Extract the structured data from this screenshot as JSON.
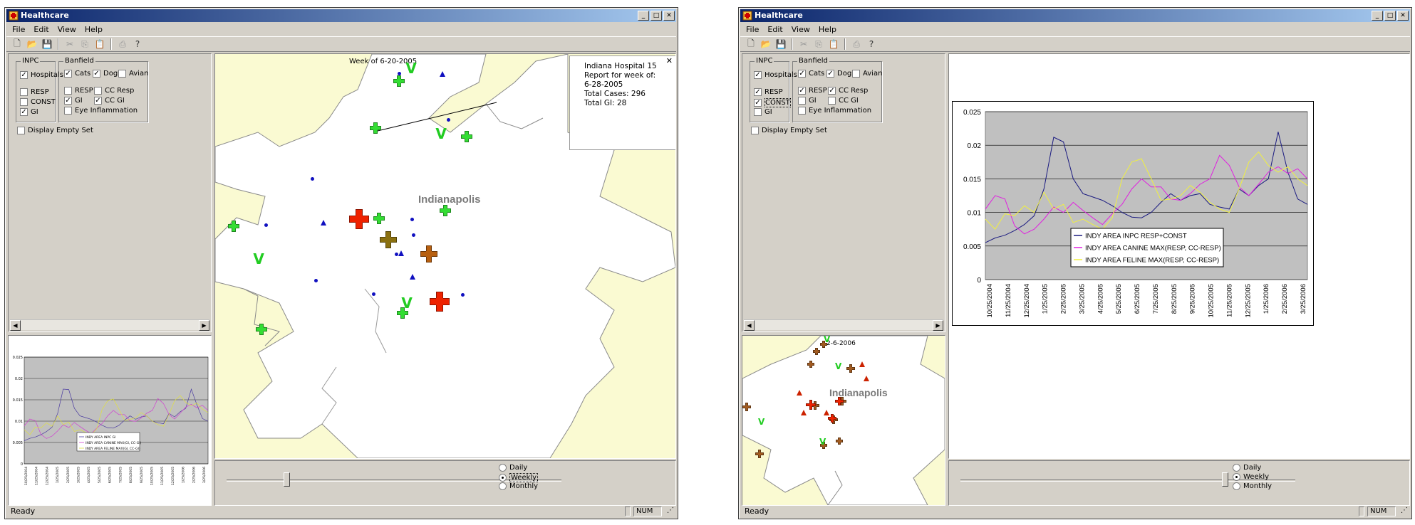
{
  "app": {
    "title": "Healthcare"
  },
  "menu": [
    "File",
    "Edit",
    "View",
    "Help"
  ],
  "toolbar_icons": [
    "new-icon",
    "open-icon",
    "save-icon",
    "cut-icon",
    "copy-icon",
    "paste-icon",
    "print-icon",
    "help-icon"
  ],
  "controls": {
    "inpc_label": "INPC",
    "banfield_label": "Banfield",
    "hospitals": "Hospitals",
    "resp": "RESP",
    "const": "CONST",
    "gi": "GI",
    "cats": "Cats",
    "dogs": "Dogs",
    "avian": "Avian",
    "b_resp": "RESP",
    "cc_resp": "CC Resp",
    "b_gi": "GI",
    "cc_gi": "CC GI",
    "eye": "Eye Inflammation",
    "display_empty": "Display Empty Set"
  },
  "window1": {
    "checks": {
      "hospitals": true,
      "resp": false,
      "const": false,
      "gi": true,
      "cats": true,
      "dogs": true,
      "avian": false,
      "b_resp": false,
      "cc_resp": false,
      "b_gi": true,
      "cc_gi": true,
      "eye": false,
      "display_empty": false
    },
    "map": {
      "week_label": "Week of 6-20-2005",
      "city_label": "Indianapolis",
      "popup": [
        "Indiana Hospital 15",
        "Report for week of:",
        "6-28-2005",
        "Total Cases: 296",
        "Total GI: 28"
      ]
    },
    "thumb_chart": {
      "yticks": [
        "0.025",
        "0.02",
        "0.015",
        "0.01",
        "0.005",
        "0"
      ],
      "legend": [
        "INDY AREA INPC GI",
        "INDY AREA CANINE MAX(GI, CC-GI)",
        "INDY AREA FELINE MAX(GI, CC-GI)"
      ]
    },
    "slider_value": 0.17,
    "radios": {
      "daily": "Daily",
      "weekly": "Weekly",
      "monthly": "Monthly",
      "selected": "weekly"
    },
    "status": {
      "text": "Ready",
      "num": "NUM"
    }
  },
  "window2": {
    "checks": {
      "hospitals": true,
      "resp": true,
      "const": true,
      "gi": false,
      "cats": true,
      "dogs": true,
      "avian": false,
      "b_resp": true,
      "cc_resp": true,
      "b_gi": false,
      "cc_gi": false,
      "eye": false,
      "display_empty": false
    },
    "thumb_map": {
      "week_label": "2-6-2006",
      "city_label": "Indianapolis"
    },
    "slider_value": 0.78,
    "radios": {
      "daily": "Daily",
      "weekly": "Weekly",
      "monthly": "Monthly",
      "selected": "weekly"
    },
    "status": {
      "text": "Ready",
      "num": "NUM"
    }
  },
  "chart_data": {
    "type": "line",
    "title": "",
    "xlabel": "",
    "ylabel": "",
    "ylim": [
      0,
      0.025
    ],
    "yticks": [
      "0.025",
      "0.02",
      "0.015",
      "0.01",
      "0.005",
      "0"
    ],
    "x_labels": [
      "10/25/2004",
      "11/25/2004",
      "12/25/2004",
      "1/25/2005",
      "2/25/2005",
      "3/25/2005",
      "4/25/2005",
      "5/25/2005",
      "6/25/2005",
      "7/25/2005",
      "8/25/2005",
      "9/25/2005",
      "10/25/2005",
      "11/25/2005",
      "12/25/2005",
      "1/25/2006",
      "2/25/2006",
      "3/25/2006"
    ],
    "grid": true,
    "legend_position": "bottom-center",
    "colors": {
      "plot_bg": "#c0c0c0",
      "inpc": "#1a1a80",
      "canine": "#e020e0",
      "feline": "#f0f040"
    },
    "series": [
      {
        "name": "INDY AREA INPC RESP+CONST",
        "color": "#1a1a80",
        "values": [
          0.0055,
          0.0062,
          0.0066,
          0.0073,
          0.0082,
          0.0095,
          0.0135,
          0.0212,
          0.0205,
          0.015,
          0.0128,
          0.0123,
          0.0118,
          0.011,
          0.01,
          0.0093,
          0.0092,
          0.01,
          0.0115,
          0.0128,
          0.0118,
          0.0125,
          0.0128,
          0.0112,
          0.0108,
          0.0105,
          0.0135,
          0.0125,
          0.014,
          0.015,
          0.022,
          0.016,
          0.012,
          0.0112
        ]
      },
      {
        "name": "INDY AREA CANINE MAX(RESP, CC-RESP)",
        "color": "#e020e0",
        "values": [
          0.0105,
          0.0125,
          0.012,
          0.008,
          0.0068,
          0.0075,
          0.009,
          0.0108,
          0.01,
          0.0115,
          0.0103,
          0.0092,
          0.0082,
          0.0098,
          0.0112,
          0.0135,
          0.015,
          0.0138,
          0.0138,
          0.012,
          0.0118,
          0.0128,
          0.0142,
          0.015,
          0.0185,
          0.017,
          0.0138,
          0.0125,
          0.0142,
          0.016,
          0.0168,
          0.0158,
          0.0165,
          0.015
        ]
      },
      {
        "name": "INDY AREA FELINE MAX(RESP, CC-RESP)",
        "color": "#f0f040",
        "values": [
          0.009,
          0.0075,
          0.0098,
          0.0095,
          0.011,
          0.01,
          0.013,
          0.0105,
          0.0112,
          0.0085,
          0.009,
          0.0082,
          0.0075,
          0.0092,
          0.015,
          0.0175,
          0.018,
          0.015,
          0.0118,
          0.012,
          0.0125,
          0.014,
          0.013,
          0.0115,
          0.0105,
          0.01,
          0.0135,
          0.0175,
          0.019,
          0.017,
          0.016,
          0.0168,
          0.015,
          0.014
        ]
      }
    ]
  }
}
